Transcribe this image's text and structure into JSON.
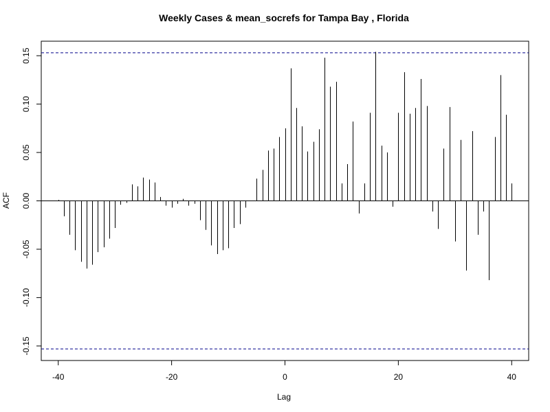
{
  "chart_data": {
    "type": "bar",
    "title": "Weekly Cases & mean_socrefs for Tampa Bay , Florida",
    "xlabel": "Lag",
    "ylabel": "ACF",
    "xlim": [
      -43,
      43
    ],
    "ylim": [
      -0.165,
      0.165
    ],
    "x_ticks": [
      -40,
      -20,
      0,
      20,
      40
    ],
    "x_tick_labels": [
      "-40",
      "-20",
      "0",
      "20",
      "40"
    ],
    "y_ticks": [
      -0.15,
      -0.1,
      -0.05,
      0.0,
      0.05,
      0.1,
      0.15
    ],
    "y_tick_labels": [
      "-0.15",
      "-0.10",
      "-0.05",
      "0.00",
      "0.05",
      "0.10",
      "0.15"
    ],
    "confidence_bound": 0.153,
    "colors": {
      "bars": "#000000",
      "confidence": "#00008b",
      "zero": "#000000"
    },
    "lags": [
      -40,
      -39,
      -38,
      -37,
      -36,
      -35,
      -34,
      -33,
      -32,
      -31,
      -30,
      -29,
      -28,
      -27,
      -26,
      -25,
      -24,
      -23,
      -22,
      -21,
      -20,
      -19,
      -18,
      -17,
      -16,
      -15,
      -14,
      -13,
      -12,
      -11,
      -10,
      -9,
      -8,
      -7,
      -6,
      -5,
      -4,
      -3,
      -2,
      -1,
      0,
      1,
      2,
      3,
      4,
      5,
      6,
      7,
      8,
      9,
      10,
      11,
      12,
      13,
      14,
      15,
      16,
      17,
      18,
      19,
      20,
      21,
      22,
      23,
      24,
      25,
      26,
      27,
      28,
      29,
      30,
      31,
      32,
      33,
      34,
      35,
      36,
      37,
      38,
      39,
      40
    ],
    "values": [
      0.001,
      -0.016,
      -0.035,
      -0.051,
      -0.063,
      -0.07,
      -0.066,
      -0.053,
      -0.048,
      -0.039,
      -0.028,
      -0.004,
      -0.002,
      0.017,
      0.015,
      0.024,
      0.022,
      0.019,
      0.004,
      -0.005,
      -0.007,
      -0.003,
      0.002,
      -0.005,
      -0.003,
      -0.02,
      -0.03,
      -0.046,
      -0.055,
      -0.051,
      -0.049,
      -0.028,
      -0.024,
      -0.007,
      0.0,
      0.023,
      0.032,
      0.052,
      0.054,
      0.066,
      0.075,
      0.137,
      0.096,
      0.077,
      0.051,
      0.061,
      0.074,
      0.148,
      0.118,
      0.123,
      0.018,
      0.038,
      0.082,
      -0.013,
      0.018,
      0.091,
      0.154,
      0.057,
      0.05,
      -0.006,
      0.091,
      0.133,
      0.09,
      0.096,
      0.126,
      0.098,
      -0.011,
      -0.029,
      0.054,
      0.097,
      -0.042,
      0.063,
      -0.072,
      0.072,
      -0.035,
      -0.011,
      -0.082,
      0.066,
      0.13,
      0.089,
      0.018
    ]
  }
}
